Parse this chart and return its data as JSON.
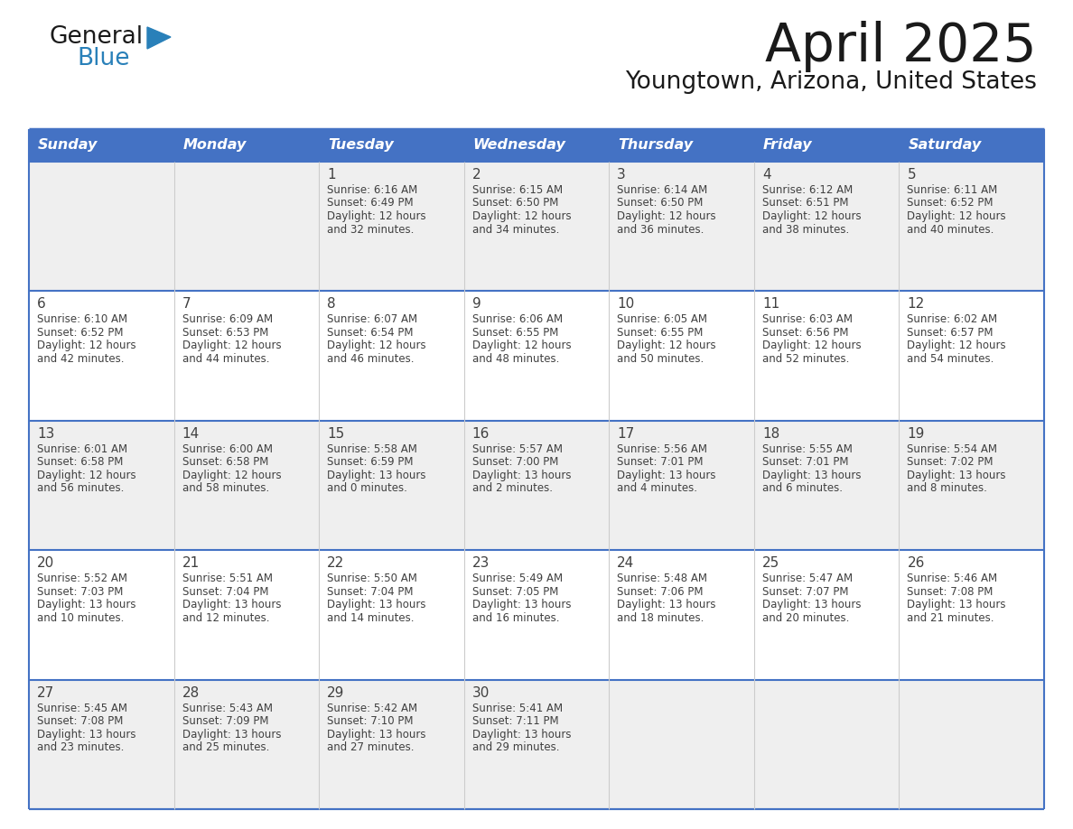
{
  "title": "April 2025",
  "subtitle": "Youngtown, Arizona, United States",
  "header_bg_color": "#4472C4",
  "header_text_color": "#FFFFFF",
  "weekdays": [
    "Sunday",
    "Monday",
    "Tuesday",
    "Wednesday",
    "Thursday",
    "Friday",
    "Saturday"
  ],
  "row_bg_even": "#EFEFEF",
  "row_bg_odd": "#FFFFFF",
  "border_color": "#4472C4",
  "divider_color": "#4472C4",
  "col_divider_color": "#CCCCCC",
  "text_color": "#404040",
  "title_color": "#1a1a1a",
  "logo_text_color": "#1a1a1a",
  "logo_blue_color": "#2980B9",
  "days": [
    {
      "date": 1,
      "col": 2,
      "row": 0,
      "sunrise": "6:16 AM",
      "sunset": "6:49 PM",
      "daylight": "12 hours and 32 minutes"
    },
    {
      "date": 2,
      "col": 3,
      "row": 0,
      "sunrise": "6:15 AM",
      "sunset": "6:50 PM",
      "daylight": "12 hours and 34 minutes"
    },
    {
      "date": 3,
      "col": 4,
      "row": 0,
      "sunrise": "6:14 AM",
      "sunset": "6:50 PM",
      "daylight": "12 hours and 36 minutes"
    },
    {
      "date": 4,
      "col": 5,
      "row": 0,
      "sunrise": "6:12 AM",
      "sunset": "6:51 PM",
      "daylight": "12 hours and 38 minutes"
    },
    {
      "date": 5,
      "col": 6,
      "row": 0,
      "sunrise": "6:11 AM",
      "sunset": "6:52 PM",
      "daylight": "12 hours and 40 minutes"
    },
    {
      "date": 6,
      "col": 0,
      "row": 1,
      "sunrise": "6:10 AM",
      "sunset": "6:52 PM",
      "daylight": "12 hours and 42 minutes"
    },
    {
      "date": 7,
      "col": 1,
      "row": 1,
      "sunrise": "6:09 AM",
      "sunset": "6:53 PM",
      "daylight": "12 hours and 44 minutes"
    },
    {
      "date": 8,
      "col": 2,
      "row": 1,
      "sunrise": "6:07 AM",
      "sunset": "6:54 PM",
      "daylight": "12 hours and 46 minutes"
    },
    {
      "date": 9,
      "col": 3,
      "row": 1,
      "sunrise": "6:06 AM",
      "sunset": "6:55 PM",
      "daylight": "12 hours and 48 minutes"
    },
    {
      "date": 10,
      "col": 4,
      "row": 1,
      "sunrise": "6:05 AM",
      "sunset": "6:55 PM",
      "daylight": "12 hours and 50 minutes"
    },
    {
      "date": 11,
      "col": 5,
      "row": 1,
      "sunrise": "6:03 AM",
      "sunset": "6:56 PM",
      "daylight": "12 hours and 52 minutes"
    },
    {
      "date": 12,
      "col": 6,
      "row": 1,
      "sunrise": "6:02 AM",
      "sunset": "6:57 PM",
      "daylight": "12 hours and 54 minutes"
    },
    {
      "date": 13,
      "col": 0,
      "row": 2,
      "sunrise": "6:01 AM",
      "sunset": "6:58 PM",
      "daylight": "12 hours and 56 minutes"
    },
    {
      "date": 14,
      "col": 1,
      "row": 2,
      "sunrise": "6:00 AM",
      "sunset": "6:58 PM",
      "daylight": "12 hours and 58 minutes"
    },
    {
      "date": 15,
      "col": 2,
      "row": 2,
      "sunrise": "5:58 AM",
      "sunset": "6:59 PM",
      "daylight": "13 hours and 0 minutes"
    },
    {
      "date": 16,
      "col": 3,
      "row": 2,
      "sunrise": "5:57 AM",
      "sunset": "7:00 PM",
      "daylight": "13 hours and 2 minutes"
    },
    {
      "date": 17,
      "col": 4,
      "row": 2,
      "sunrise": "5:56 AM",
      "sunset": "7:01 PM",
      "daylight": "13 hours and 4 minutes"
    },
    {
      "date": 18,
      "col": 5,
      "row": 2,
      "sunrise": "5:55 AM",
      "sunset": "7:01 PM",
      "daylight": "13 hours and 6 minutes"
    },
    {
      "date": 19,
      "col": 6,
      "row": 2,
      "sunrise": "5:54 AM",
      "sunset": "7:02 PM",
      "daylight": "13 hours and 8 minutes"
    },
    {
      "date": 20,
      "col": 0,
      "row": 3,
      "sunrise": "5:52 AM",
      "sunset": "7:03 PM",
      "daylight": "13 hours and 10 minutes"
    },
    {
      "date": 21,
      "col": 1,
      "row": 3,
      "sunrise": "5:51 AM",
      "sunset": "7:04 PM",
      "daylight": "13 hours and 12 minutes"
    },
    {
      "date": 22,
      "col": 2,
      "row": 3,
      "sunrise": "5:50 AM",
      "sunset": "7:04 PM",
      "daylight": "13 hours and 14 minutes"
    },
    {
      "date": 23,
      "col": 3,
      "row": 3,
      "sunrise": "5:49 AM",
      "sunset": "7:05 PM",
      "daylight": "13 hours and 16 minutes"
    },
    {
      "date": 24,
      "col": 4,
      "row": 3,
      "sunrise": "5:48 AM",
      "sunset": "7:06 PM",
      "daylight": "13 hours and 18 minutes"
    },
    {
      "date": 25,
      "col": 5,
      "row": 3,
      "sunrise": "5:47 AM",
      "sunset": "7:07 PM",
      "daylight": "13 hours and 20 minutes"
    },
    {
      "date": 26,
      "col": 6,
      "row": 3,
      "sunrise": "5:46 AM",
      "sunset": "7:08 PM",
      "daylight": "13 hours and 21 minutes"
    },
    {
      "date": 27,
      "col": 0,
      "row": 4,
      "sunrise": "5:45 AM",
      "sunset": "7:08 PM",
      "daylight": "13 hours and 23 minutes"
    },
    {
      "date": 28,
      "col": 1,
      "row": 4,
      "sunrise": "5:43 AM",
      "sunset": "7:09 PM",
      "daylight": "13 hours and 25 minutes"
    },
    {
      "date": 29,
      "col": 2,
      "row": 4,
      "sunrise": "5:42 AM",
      "sunset": "7:10 PM",
      "daylight": "13 hours and 27 minutes"
    },
    {
      "date": 30,
      "col": 3,
      "row": 4,
      "sunrise": "5:41 AM",
      "sunset": "7:11 PM",
      "daylight": "13 hours and 29 minutes"
    }
  ]
}
